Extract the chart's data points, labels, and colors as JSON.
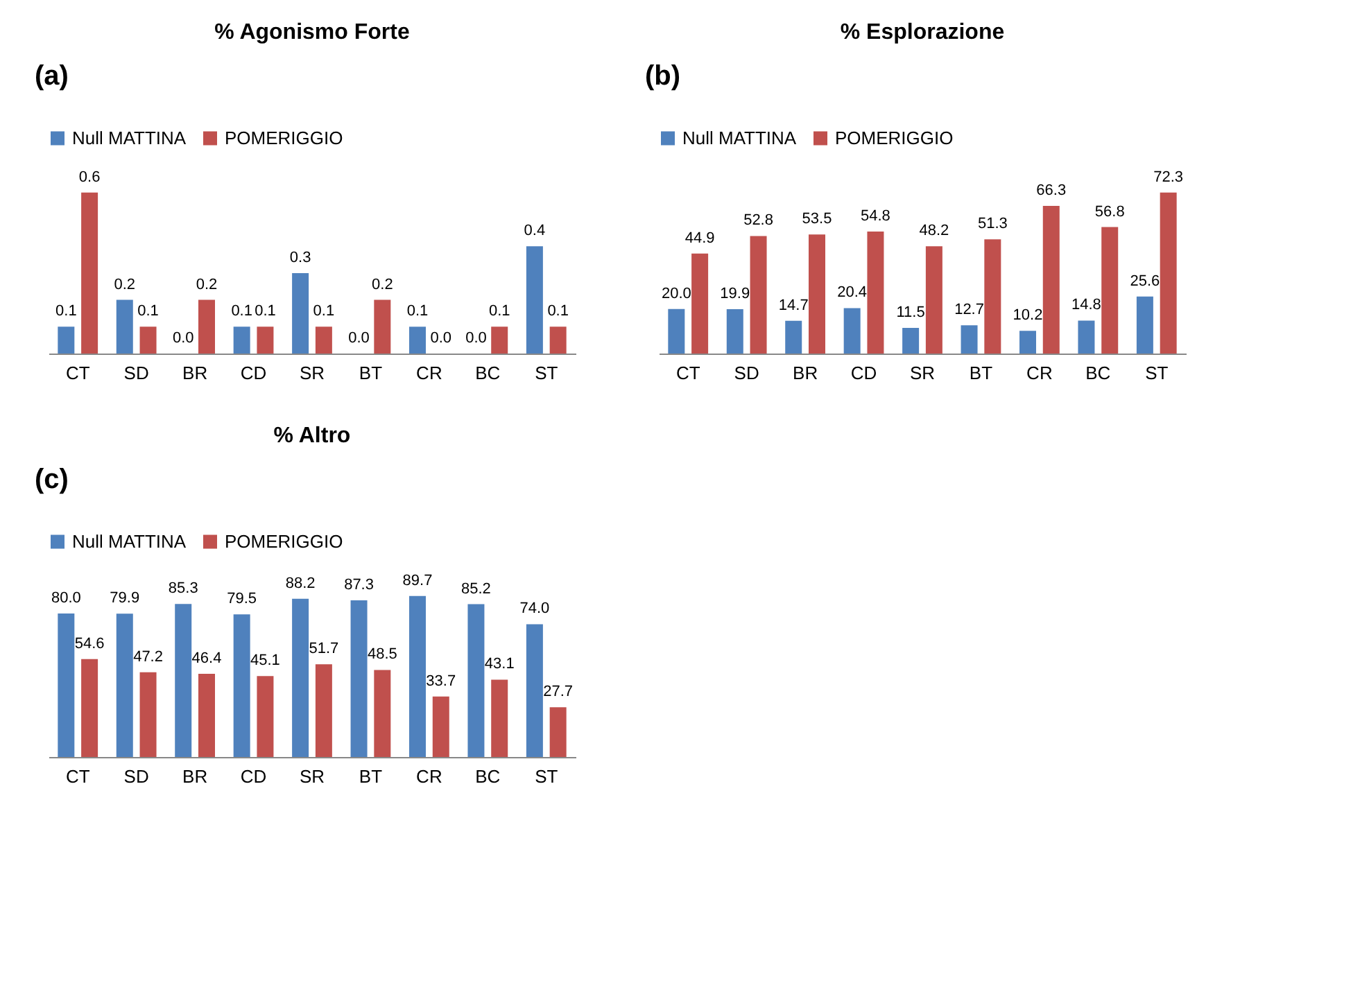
{
  "chart_data": [
    {
      "type": "bar",
      "title": "% Agonismo Forte",
      "annotations": [
        "(a)"
      ],
      "categories": [
        "CT",
        "SD",
        "BR",
        "CD",
        "SR",
        "BT",
        "CR",
        "BC",
        "ST"
      ],
      "legend": "top",
      "grid": false,
      "tick_labels": "x",
      "series": [
        {
          "name": "Null MATTINA",
          "color": "#4f81bd",
          "values": [
            0.1,
            0.2,
            0.0,
            0.1,
            0.3,
            0.0,
            0.1,
            0.0,
            0.4
          ],
          "value_labels": [
            "0.1",
            "0.2",
            "0.0",
            "0.1",
            "0.3",
            "0.0",
            "0.1",
            "0.0",
            "0.4"
          ]
        },
        {
          "name": "POMERIGGIO",
          "color": "#c0504d",
          "values": [
            0.6,
            0.1,
            0.2,
            0.1,
            0.1,
            0.2,
            0.0,
            0.1,
            0.1
          ],
          "value_labels": [
            "0.6",
            "0.1",
            "0.2",
            "0.1",
            "0.1",
            "0.2",
            "0.0",
            "0.1",
            "0.1"
          ]
        }
      ]
    },
    {
      "type": "bar",
      "title": "% Esplorazione",
      "annotations": [
        "(b)"
      ],
      "categories": [
        "CT",
        "SD",
        "BR",
        "CD",
        "SR",
        "BT",
        "CR",
        "BC",
        "ST"
      ],
      "legend": "top",
      "grid": false,
      "tick_labels": "x",
      "series": [
        {
          "name": "Null MATTINA",
          "color": "#4f81bd",
          "values": [
            20.0,
            19.9,
            14.7,
            20.4,
            11.5,
            12.7,
            10.2,
            14.8,
            25.6
          ],
          "value_labels": [
            "20.0",
            "19.9",
            "14.7",
            "20.4",
            "11.5",
            "12.7",
            "10.2",
            "14.8",
            "25.6"
          ]
        },
        {
          "name": "POMERIGGIO",
          "color": "#c0504d",
          "values": [
            44.9,
            52.8,
            53.5,
            54.8,
            48.2,
            51.3,
            66.3,
            56.8,
            72.3
          ],
          "value_labels": [
            "44.9",
            "52.8",
            "53.5",
            "54.8",
            "48.2",
            "51.3",
            "66.3",
            "56.8",
            "72.3"
          ]
        }
      ]
    },
    {
      "type": "bar",
      "title": "% Altro",
      "annotations": [
        "(c)"
      ],
      "categories": [
        "CT",
        "SD",
        "BR",
        "CD",
        "SR",
        "BT",
        "CR",
        "BC",
        "ST"
      ],
      "legend": "top",
      "grid": false,
      "tick_labels": "x",
      "series": [
        {
          "name": "Null MATTINA",
          "color": "#4f81bd",
          "values": [
            80.0,
            79.9,
            85.3,
            79.5,
            88.2,
            87.3,
            89.7,
            85.2,
            74.0
          ],
          "value_labels": [
            "80.0",
            "79.9",
            "85.3",
            "79.5",
            "88.2",
            "87.3",
            "89.7",
            "85.2",
            "74.0"
          ]
        },
        {
          "name": "POMERIGGIO",
          "color": "#c0504d",
          "values": [
            54.6,
            47.2,
            46.4,
            45.1,
            51.7,
            48.5,
            33.7,
            43.1,
            27.7
          ],
          "value_labels": [
            "54.6",
            "47.2",
            "46.4",
            "45.1",
            "51.7",
            "48.5",
            "33.7",
            "43.1",
            "27.7"
          ]
        }
      ]
    }
  ]
}
